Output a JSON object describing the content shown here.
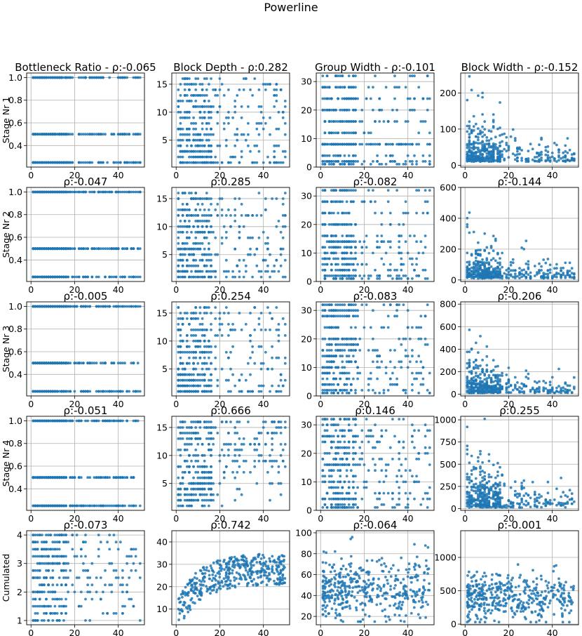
{
  "figure": {
    "title": "Powerline"
  },
  "rows": [
    "Stage Nr 1",
    "Stage Nr 2",
    "Stage Nr 3",
    "Stage Nr 4",
    "Cumulated"
  ],
  "chart_data": [
    {
      "type": "scatter",
      "row": 0,
      "col": 0,
      "title": "Bottleneck Ratio - ρ:-0.065",
      "ylabel": "Stage Nr 1",
      "xlim": [
        -2,
        52
      ],
      "ylim": [
        0.21,
        1.04
      ],
      "xticks": [
        0,
        20,
        40
      ],
      "yticks": [
        0.4,
        0.6,
        0.8,
        1.0
      ],
      "ytick_labels": [
        "0.4",
        "0.6",
        "0.8",
        "1.0"
      ],
      "pattern": {
        "kind": "discrete",
        "levels": [
          0.25,
          0.5,
          1.0
        ],
        "n": 480,
        "seed": 11
      }
    },
    {
      "type": "scatter",
      "row": 0,
      "col": 1,
      "title": "Block Depth - ρ:0.282",
      "ylabel": "",
      "xlim": [
        -2,
        52
      ],
      "ylim": [
        0.2,
        17
      ],
      "xticks": [
        0,
        20,
        40
      ],
      "yticks": [
        5,
        10,
        15
      ],
      "ytick_labels": [
        "5",
        "10",
        "15"
      ],
      "pattern": {
        "kind": "discrete",
        "levels": [
          1,
          2,
          3,
          4,
          5,
          6,
          7,
          8,
          9,
          10,
          11,
          12,
          13,
          14,
          15,
          16
        ],
        "n": 420,
        "seed": 12,
        "skew": 0.4
      }
    },
    {
      "type": "scatter",
      "row": 0,
      "col": 2,
      "title": "Group Width - ρ:-0.101",
      "ylabel": "",
      "xlim": [
        -2,
        52
      ],
      "ylim": [
        0,
        33
      ],
      "xticks": [
        0,
        20,
        40
      ],
      "yticks": [
        0,
        10,
        20,
        30
      ],
      "ytick_labels": [
        "0",
        "10",
        "20",
        "30"
      ],
      "pattern": {
        "kind": "discrete",
        "levels": [
          1,
          2,
          4,
          8,
          8,
          8,
          12,
          16,
          20,
          24,
          28,
          32
        ],
        "n": 420,
        "seed": 13
      }
    },
    {
      "type": "scatter",
      "row": 0,
      "col": 3,
      "title": "Block Width - ρ:-0.152",
      "ylabel": "",
      "xlim": [
        -2,
        52
      ],
      "ylim": [
        -5,
        255
      ],
      "xticks": [
        0,
        20,
        40
      ],
      "yticks": [
        0,
        100,
        200
      ],
      "ytick_labels": [
        "0",
        "100",
        "200"
      ],
      "pattern": {
        "kind": "cont",
        "max": 250,
        "scale": 40,
        "n": 420,
        "seed": 14
      }
    },
    {
      "type": "scatter",
      "row": 1,
      "col": 0,
      "title": "ρ:-0.047",
      "ylabel": "Stage Nr 2",
      "xlim": [
        -2,
        52
      ],
      "ylim": [
        0.21,
        1.04
      ],
      "xticks": [
        0,
        20,
        40
      ],
      "yticks": [
        0.4,
        0.6,
        0.8,
        1.0
      ],
      "ytick_labels": [
        "0.4",
        "0.6",
        "0.8",
        "1.0"
      ],
      "pattern": {
        "kind": "discrete",
        "levels": [
          0.25,
          0.5,
          1.0
        ],
        "n": 480,
        "seed": 21
      }
    },
    {
      "type": "scatter",
      "row": 1,
      "col": 1,
      "title": "ρ:0.285",
      "ylabel": "",
      "xlim": [
        -2,
        52
      ],
      "ylim": [
        0.2,
        17
      ],
      "xticks": [
        0,
        20,
        40
      ],
      "yticks": [
        5,
        10,
        15
      ],
      "ytick_labels": [
        "5",
        "10",
        "15"
      ],
      "pattern": {
        "kind": "discrete",
        "levels": [
          1,
          2,
          3,
          4,
          5,
          6,
          7,
          8,
          9,
          10,
          11,
          12,
          13,
          14,
          15,
          16
        ],
        "n": 420,
        "seed": 22,
        "skew": 0.4
      }
    },
    {
      "type": "scatter",
      "row": 1,
      "col": 2,
      "title": "ρ:-0.082",
      "ylabel": "",
      "xlim": [
        -2,
        52
      ],
      "ylim": [
        0,
        33
      ],
      "xticks": [
        0,
        20,
        40
      ],
      "yticks": [
        0,
        10,
        20,
        30
      ],
      "ytick_labels": [
        "0",
        "10",
        "20",
        "30"
      ],
      "pattern": {
        "kind": "discrete",
        "levels": [
          1,
          2,
          4,
          6,
          8,
          10,
          12,
          14,
          16,
          20,
          24,
          28,
          32
        ],
        "n": 420,
        "seed": 23
      }
    },
    {
      "type": "scatter",
      "row": 1,
      "col": 3,
      "title": "ρ:-0.144",
      "ylabel": "",
      "xlim": [
        -2,
        52
      ],
      "ylim": [
        -10,
        600
      ],
      "xticks": [
        0,
        20,
        40
      ],
      "yticks": [
        0,
        200,
        400,
        600
      ],
      "ytick_labels": [
        "0",
        "200",
        "400",
        "600"
      ],
      "pattern": {
        "kind": "cont",
        "max": 560,
        "scale": 70,
        "n": 420,
        "seed": 24
      }
    },
    {
      "type": "scatter",
      "row": 2,
      "col": 0,
      "title": "ρ:-0.005",
      "ylabel": "Stage Nr 3",
      "xlim": [
        -2,
        52
      ],
      "ylim": [
        0.21,
        1.04
      ],
      "xticks": [
        0,
        20,
        40
      ],
      "yticks": [
        0.4,
        0.6,
        0.8,
        1.0
      ],
      "ytick_labels": [
        "0.4",
        "0.6",
        "0.8",
        "1.0"
      ],
      "pattern": {
        "kind": "discrete",
        "levels": [
          0.25,
          0.5,
          1.0
        ],
        "n": 480,
        "seed": 31
      }
    },
    {
      "type": "scatter",
      "row": 2,
      "col": 1,
      "title": "ρ:0.254",
      "ylabel": "",
      "xlim": [
        -2,
        52
      ],
      "ylim": [
        0.2,
        17
      ],
      "xticks": [
        0,
        20,
        40
      ],
      "yticks": [
        5,
        10,
        15
      ],
      "ytick_labels": [
        "5",
        "10",
        "15"
      ],
      "pattern": {
        "kind": "discrete",
        "levels": [
          1,
          2,
          3,
          4,
          5,
          6,
          7,
          8,
          9,
          10,
          11,
          12,
          13,
          14,
          15,
          16
        ],
        "n": 420,
        "seed": 32,
        "skew": 0.4
      }
    },
    {
      "type": "scatter",
      "row": 2,
      "col": 2,
      "title": "ρ:-0.083",
      "ylabel": "",
      "xlim": [
        -2,
        52
      ],
      "ylim": [
        0,
        33
      ],
      "xticks": [
        0,
        20,
        40
      ],
      "yticks": [
        0,
        10,
        20,
        30
      ],
      "ytick_labels": [
        "0",
        "10",
        "20",
        "30"
      ],
      "pattern": {
        "kind": "discrete",
        "levels": [
          1,
          2,
          4,
          6,
          8,
          10,
          12,
          14,
          16,
          18,
          20,
          24,
          28,
          30,
          32
        ],
        "n": 420,
        "seed": 33
      }
    },
    {
      "type": "scatter",
      "row": 2,
      "col": 3,
      "title": "ρ:-0.206",
      "ylabel": "",
      "xlim": [
        -2,
        52
      ],
      "ylim": [
        -15,
        820
      ],
      "xticks": [
        0,
        20,
        40
      ],
      "yticks": [
        0,
        200,
        400,
        600,
        800
      ],
      "ytick_labels": [
        "0",
        "200",
        "400",
        "600",
        "800"
      ],
      "pattern": {
        "kind": "cont",
        "max": 780,
        "scale": 110,
        "n": 420,
        "seed": 34
      }
    },
    {
      "type": "scatter",
      "row": 3,
      "col": 0,
      "title": "ρ:-0.051",
      "ylabel": "Stage Nr 4",
      "xlim": [
        -2,
        52
      ],
      "ylim": [
        0.21,
        1.04
      ],
      "xticks": [
        0,
        20,
        40
      ],
      "yticks": [
        0.4,
        0.6,
        0.8,
        1.0
      ],
      "ytick_labels": [
        "0.4",
        "0.6",
        "0.8",
        "1.0"
      ],
      "pattern": {
        "kind": "discrete",
        "levels": [
          0.25,
          0.5,
          1.0
        ],
        "n": 480,
        "seed": 41
      }
    },
    {
      "type": "scatter",
      "row": 3,
      "col": 1,
      "title": "ρ:0.666",
      "ylabel": "",
      "xlim": [
        -2,
        52
      ],
      "ylim": [
        0.2,
        17
      ],
      "xticks": [
        0,
        20,
        40
      ],
      "yticks": [
        5,
        10,
        15
      ],
      "ytick_labels": [
        "5",
        "10",
        "15"
      ],
      "pattern": {
        "kind": "discrete",
        "levels": [
          1,
          2,
          3,
          4,
          5,
          6,
          7,
          8,
          9,
          10,
          11,
          12,
          13,
          14,
          15,
          16
        ],
        "n": 420,
        "seed": 42,
        "corr": 0.6
      }
    },
    {
      "type": "scatter",
      "row": 3,
      "col": 2,
      "title": "ρ:0.146",
      "ylabel": "",
      "xlim": [
        -2,
        52
      ],
      "ylim": [
        0,
        33
      ],
      "xticks": [
        0,
        20,
        40
      ],
      "yticks": [
        0,
        10,
        20,
        30
      ],
      "ytick_labels": [
        "0",
        "10",
        "20",
        "30"
      ],
      "pattern": {
        "kind": "discrete",
        "levels": [
          1,
          2,
          4,
          6,
          8,
          10,
          12,
          14,
          16,
          18,
          20,
          22,
          24,
          26,
          28,
          30,
          32
        ],
        "n": 420,
        "seed": 43
      }
    },
    {
      "type": "scatter",
      "row": 3,
      "col": 3,
      "title": "ρ:0.255",
      "ylabel": "",
      "xlim": [
        -2,
        52
      ],
      "ylim": [
        -20,
        1040
      ],
      "xticks": [
        0,
        20,
        40
      ],
      "yticks": [
        0,
        250,
        500,
        750,
        1000
      ],
      "ytick_labels": [
        "0",
        "250",
        "500",
        "750",
        "1000"
      ],
      "pattern": {
        "kind": "cont",
        "max": 1000,
        "scale": 180,
        "n": 420,
        "seed": 44
      }
    },
    {
      "type": "scatter",
      "row": 4,
      "col": 0,
      "title": "ρ:-0.073",
      "ylabel": "Cumulated",
      "xlim": [
        -2,
        52
      ],
      "ylim": [
        0.85,
        4.15
      ],
      "xticks": [
        0,
        20,
        40
      ],
      "yticks": [
        1,
        2,
        3,
        4
      ],
      "ytick_labels": [
        "1",
        "2",
        "3",
        "4"
      ],
      "pattern": {
        "kind": "discrete",
        "levels": [
          1,
          1.25,
          1.5,
          1.75,
          2,
          2.25,
          2.5,
          2.75,
          3,
          3.25,
          3.5,
          3.75,
          4
        ],
        "n": 360,
        "seed": 51
      }
    },
    {
      "type": "scatter",
      "row": 4,
      "col": 1,
      "title": "ρ:0.742",
      "ylabel": "",
      "xlim": [
        -2,
        52
      ],
      "ylim": [
        3,
        45
      ],
      "xticks": [
        0,
        20,
        40
      ],
      "yticks": [
        10,
        20,
        30,
        40
      ],
      "ytick_labels": [
        "10",
        "20",
        "30",
        "40"
      ],
      "pattern": {
        "kind": "growth",
        "n": 420,
        "seed": 52
      }
    },
    {
      "type": "scatter",
      "row": 4,
      "col": 2,
      "title": "ρ:-0.064",
      "ylabel": "",
      "xlim": [
        -2,
        52
      ],
      "ylim": [
        12,
        102
      ],
      "xticks": [
        0,
        20,
        40
      ],
      "yticks": [
        20,
        40,
        60,
        80,
        100
      ],
      "ytick_labels": [
        "20",
        "40",
        "60",
        "80",
        "100"
      ],
      "pattern": {
        "kind": "band",
        "center": 45,
        "spread": 14,
        "n": 420,
        "seed": 53
      }
    },
    {
      "type": "scatter",
      "row": 4,
      "col": 3,
      "title": "ρ:-0.001",
      "ylabel": "",
      "xlim": [
        -2,
        52
      ],
      "ylim": [
        -10,
        1400
      ],
      "xticks": [
        0,
        20,
        40
      ],
      "yticks": [
        0,
        500,
        1000
      ],
      "ytick_labels": [
        "0",
        "500",
        "1000"
      ],
      "pattern": {
        "kind": "band",
        "center": 380,
        "spread": 170,
        "n": 420,
        "seed": 54,
        "floor": 30
      }
    }
  ],
  "style": {
    "marker_color": "#1f77b4",
    "grid_color": "#b0b0b0",
    "text_color": "#000000"
  }
}
